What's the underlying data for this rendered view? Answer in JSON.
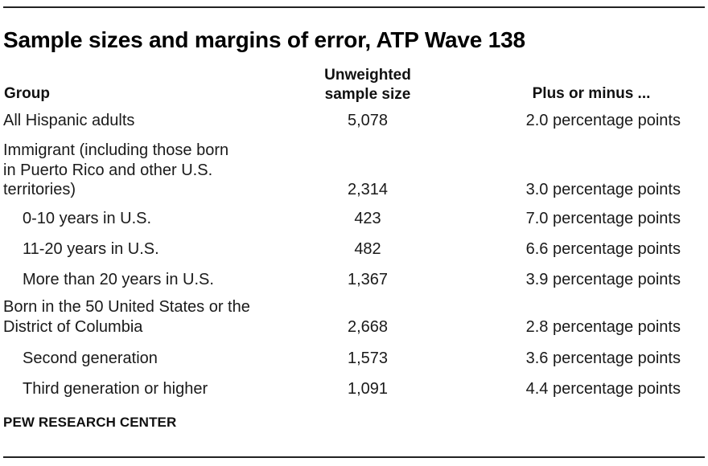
{
  "chart_data": {
    "type": "table",
    "title": "Sample sizes and margins of error, ATP Wave 138",
    "columns": {
      "group": "Group",
      "size_line1": "Unweighted",
      "size_line2": "sample size",
      "moe": "Plus or minus ..."
    },
    "rows": [
      {
        "group": "All Hispanic adults",
        "size": "5,078",
        "moe": "2.0 percentage points"
      },
      {
        "group": "Immigrant (including those born in Puerto Rico and other U.S. territories)",
        "size": "2,314",
        "moe": "3.0 percentage points"
      },
      {
        "group": "0-10 years in U.S.",
        "size": "423",
        "moe": "7.0 percentage points"
      },
      {
        "group": "11-20 years in U.S.",
        "size": "482",
        "moe": "6.6 percentage points"
      },
      {
        "group": "More than 20 years in U.S.",
        "size": "1,367",
        "moe": "3.9 percentage points"
      },
      {
        "group": "Born in the 50 United States or the District of Columbia",
        "size": "2,668",
        "moe": "2.8 percentage points"
      },
      {
        "group": "Second generation",
        "size": "1,573",
        "moe": "3.6 percentage points"
      },
      {
        "group": "Third generation or higher",
        "size": "1,091",
        "moe": "4.4 percentage points"
      }
    ]
  },
  "source": "PEW RESEARCH CENTER"
}
